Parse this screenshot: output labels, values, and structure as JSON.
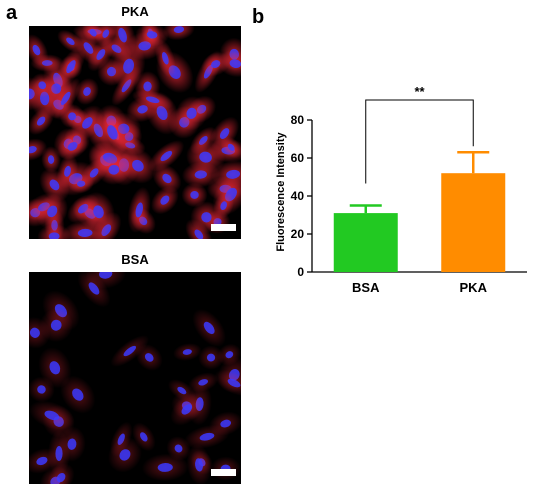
{
  "panels": {
    "a": {
      "letter": "a"
    },
    "b": {
      "letter": "b"
    }
  },
  "images": [
    {
      "title": "PKA",
      "scale_bar_color": "#ffffff",
      "cell_density": "high"
    },
    {
      "title": "BSA",
      "scale_bar_color": "#ffffff",
      "cell_density": "low"
    }
  ],
  "chart_data": {
    "type": "bar",
    "categories": [
      "BSA",
      "PKA"
    ],
    "values": [
      31,
      52
    ],
    "errors": [
      4,
      11
    ],
    "colors": [
      "#22c922",
      "#ff8c00"
    ],
    "title": "",
    "xlabel": "",
    "ylabel": "Fluorescence Intensity",
    "ylim": [
      0,
      80
    ],
    "yticks": [
      0,
      20,
      40,
      60,
      80
    ],
    "significance": {
      "label": "**",
      "between": [
        "BSA",
        "PKA"
      ]
    },
    "grid": false
  }
}
